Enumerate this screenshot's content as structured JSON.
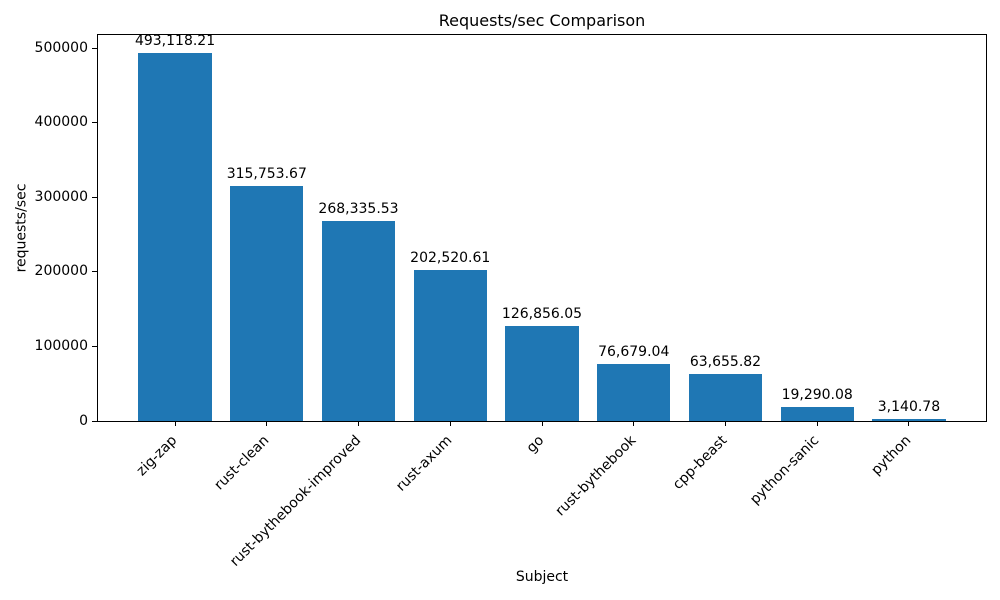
{
  "chart_data": {
    "type": "bar",
    "title": "Requests/sec Comparison",
    "xlabel": "Subject",
    "ylabel": "requests/sec",
    "categories": [
      "zig-zap",
      "rust-clean",
      "rust-bythebook-improved",
      "rust-axum",
      "go",
      "rust-bythebook",
      "cpp-beast",
      "python-sanic",
      "python"
    ],
    "values": [
      493118.21,
      315753.67,
      268335.53,
      202520.61,
      126856.05,
      76679.04,
      63655.82,
      19290.08,
      3140.78
    ],
    "value_labels": [
      "493,118.21",
      "315,753.67",
      "268,335.53",
      "202,520.61",
      "126,856.05",
      "76,679.04",
      "63,655.82",
      "19,290.08",
      "3,140.78"
    ],
    "bar_color": "#1f77b4",
    "text_color": "#000000",
    "ylim": [
      0,
      517774
    ],
    "yticks": [
      0,
      100000,
      200000,
      300000,
      400000,
      500000
    ],
    "grid": false,
    "legend_position": "none"
  }
}
